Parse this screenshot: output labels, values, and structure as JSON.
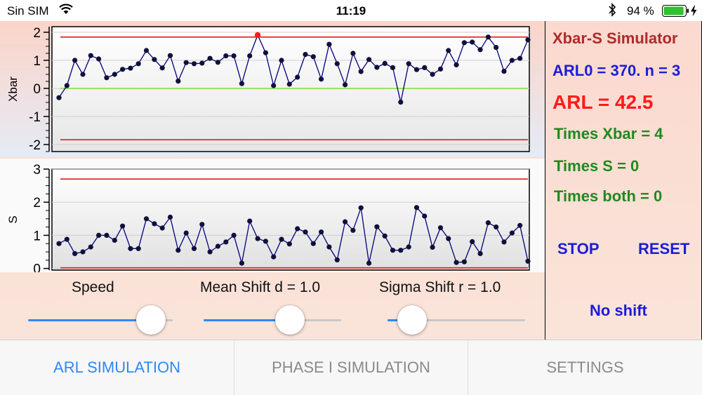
{
  "status_bar": {
    "carrier": "Sin SIM",
    "time": "11:19",
    "battery_percent": "94 %",
    "battery_level": 0.94
  },
  "right_panel": {
    "title": "Xbar-S Simulator",
    "arl0": "ARL0 = 370. n = 3",
    "arl": "ARL = 42.5",
    "times_xbar": "Times Xbar = 4",
    "times_s": "Times S = 0",
    "times_both": "Times both = 0",
    "stop_label": "STOP",
    "reset_label": "RESET",
    "shift_status": "No shift"
  },
  "controls": {
    "speed": {
      "label": "Speed",
      "value": 0.85
    },
    "mean_shift": {
      "label": "Mean Shift d = 1.0",
      "value": 0.63
    },
    "sigma_shift": {
      "label": "Sigma Shift r = 1.0",
      "value": 0.18
    }
  },
  "tabs": [
    {
      "label": "ARL SIMULATION",
      "active": true
    },
    {
      "label": "PHASE I SIMULATION",
      "active": false
    },
    {
      "label": "SETTINGS",
      "active": false
    }
  ],
  "colors": {
    "accent": "#2f87f7",
    "line": "#00007f",
    "limit": "#e8191a",
    "center": "#7ee032",
    "title": "#b02a2a",
    "arl0": "#1c1cd8",
    "arl": "#ff1a1a",
    "times": "#1f8a1f"
  },
  "chart_data": [
    {
      "type": "line",
      "ylabel": "Xbar",
      "ylim": [
        -2.25,
        2.2
      ],
      "yticks": [
        "2",
        "1",
        "0",
        "-1",
        "-2"
      ],
      "ucl": 1.83,
      "lcl": -1.83,
      "center": 0,
      "highlight_index": 25,
      "values": [
        -0.33,
        0.1,
        1.0,
        0.5,
        1.17,
        1.05,
        0.38,
        0.5,
        0.68,
        0.72,
        0.88,
        1.35,
        1.03,
        0.73,
        1.17,
        0.26,
        0.92,
        0.88,
        0.9,
        1.07,
        0.93,
        1.16,
        1.16,
        0.17,
        1.16,
        1.9,
        1.27,
        0.1,
        1.0,
        0.15,
        0.4,
        1.21,
        1.13,
        0.33,
        1.57,
        0.88,
        0.13,
        1.25,
        0.6,
        1.03,
        0.75,
        0.89,
        0.74,
        -0.49,
        0.88,
        0.67,
        0.74,
        0.5,
        0.69,
        1.35,
        0.84,
        1.63,
        1.65,
        1.38,
        1.83,
        1.46,
        0.61,
        1.0,
        1.07,
        1.73
      ]
    },
    {
      "type": "line",
      "ylabel": "S",
      "ylim": [
        -0.05,
        3.0
      ],
      "yticks": [
        "3",
        "2",
        "1",
        "0"
      ],
      "ucl": 2.7,
      "lcl": 0.02,
      "values": [
        0.75,
        0.88,
        0.45,
        0.5,
        0.65,
        1.0,
        1.0,
        0.85,
        1.28,
        0.6,
        0.6,
        1.5,
        1.35,
        1.22,
        1.55,
        0.55,
        1.07,
        0.6,
        1.33,
        0.5,
        0.67,
        0.8,
        1.0,
        0.16,
        1.43,
        0.9,
        0.82,
        0.35,
        0.88,
        0.74,
        1.2,
        1.1,
        0.75,
        1.1,
        0.65,
        0.26,
        1.41,
        1.15,
        1.83,
        0.16,
        1.26,
        0.98,
        0.55,
        0.55,
        0.65,
        1.84,
        1.58,
        0.64,
        1.23,
        0.9,
        0.18,
        0.2,
        0.81,
        0.45,
        1.38,
        1.25,
        0.8,
        1.07,
        1.3,
        0.22
      ]
    }
  ]
}
